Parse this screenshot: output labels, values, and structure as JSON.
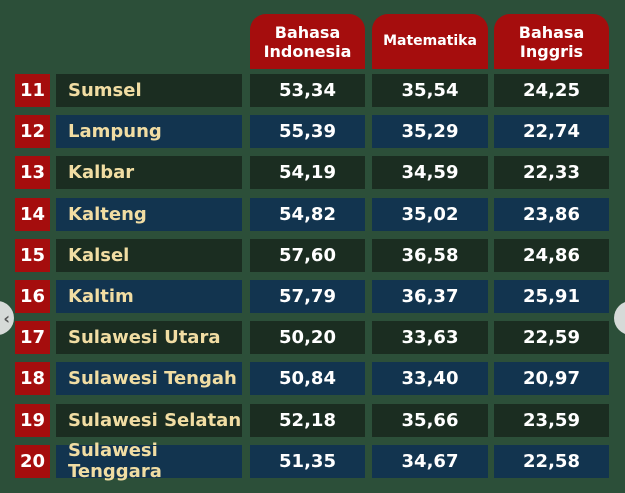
{
  "chart_data": {
    "type": "table",
    "columns": [
      "Bahasa Indonesia",
      "Matematika",
      "Bahasa Inggris"
    ],
    "rows": [
      {
        "rank": "11",
        "name": "Sumsel",
        "values": [
          "53,34",
          "35,54",
          "24,25"
        ]
      },
      {
        "rank": "12",
        "name": "Lampung",
        "values": [
          "55,39",
          "35,29",
          "22,74"
        ]
      },
      {
        "rank": "13",
        "name": "Kalbar",
        "values": [
          "54,19",
          "34,59",
          "22,33"
        ]
      },
      {
        "rank": "14",
        "name": "Kalteng",
        "values": [
          "54,82",
          "35,02",
          "23,86"
        ]
      },
      {
        "rank": "15",
        "name": "Kalsel",
        "values": [
          "57,60",
          "36,58",
          "24,86"
        ]
      },
      {
        "rank": "16",
        "name": "Kaltim",
        "values": [
          "57,79",
          "36,37",
          "25,91"
        ]
      },
      {
        "rank": "17",
        "name": "Sulawesi Utara",
        "values": [
          "50,20",
          "33,63",
          "22,59"
        ]
      },
      {
        "rank": "18",
        "name": "Sulawesi Tengah",
        "values": [
          "50,84",
          "33,40",
          "20,97"
        ]
      },
      {
        "rank": "19",
        "name": "Sulawesi Selatan",
        "values": [
          "52,18",
          "35,66",
          "23,59"
        ]
      },
      {
        "rank": "20",
        "name": "Sulawesi Tenggara",
        "values": [
          "51,35",
          "34,67",
          "22,58"
        ]
      }
    ]
  },
  "colors": {
    "background": "#2c4f39",
    "header": "#a50d0d",
    "row_dark": "#1b2d21",
    "row_blue": "#12344f",
    "name_text": "#f1dda3"
  },
  "carousel": {
    "prev_icon": "chevron-left-icon",
    "next_icon": "chevron-right-icon"
  }
}
